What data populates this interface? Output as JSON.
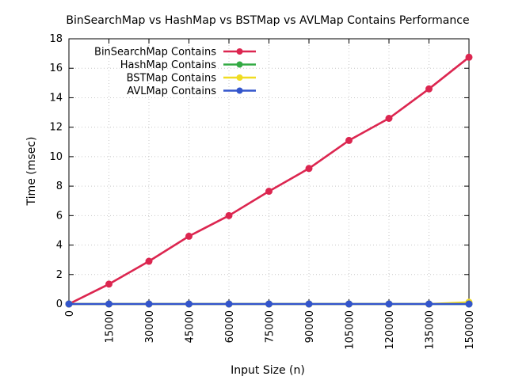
{
  "chart_data": {
    "type": "line",
    "title": "BinSearchMap vs HashMap vs BSTMap vs AVLMap Contains Performance",
    "xlabel": "Input Size (n)",
    "ylabel": "Time (msec)",
    "x": [
      0,
      15000,
      30000,
      45000,
      60000,
      75000,
      90000,
      105000,
      120000,
      135000,
      150000
    ],
    "x_ticks": [
      "0",
      "15000",
      "30000",
      "45000",
      "60000",
      "75000",
      "90000",
      "105000",
      "120000",
      "135000",
      "150000"
    ],
    "y_ticks": [
      "0",
      "2",
      "4",
      "6",
      "8",
      "10",
      "12",
      "14",
      "16",
      "18"
    ],
    "xlim": [
      0,
      150000
    ],
    "ylim": [
      0,
      18
    ],
    "grid": true,
    "legend_position": "top-left",
    "series": [
      {
        "name": "BinSearchMap Contains",
        "color": "#dc2650",
        "values": [
          0,
          1.35,
          2.9,
          4.6,
          6.0,
          7.65,
          9.2,
          11.1,
          12.6,
          14.6,
          16.75
        ]
      },
      {
        "name": "HashMap Contains",
        "color": "#33aa44",
        "values": [
          0,
          0,
          0,
          0,
          0,
          0,
          0,
          0,
          0,
          0,
          0
        ]
      },
      {
        "name": "BSTMap Contains",
        "color": "#f0dc22",
        "values": [
          0,
          0,
          0,
          0,
          0,
          0,
          0,
          0,
          0,
          0,
          0.12
        ]
      },
      {
        "name": "AVLMap Contains",
        "color": "#3355cc",
        "values": [
          0,
          0,
          0,
          0,
          0,
          0,
          0,
          0,
          0,
          0,
          0
        ]
      }
    ]
  }
}
